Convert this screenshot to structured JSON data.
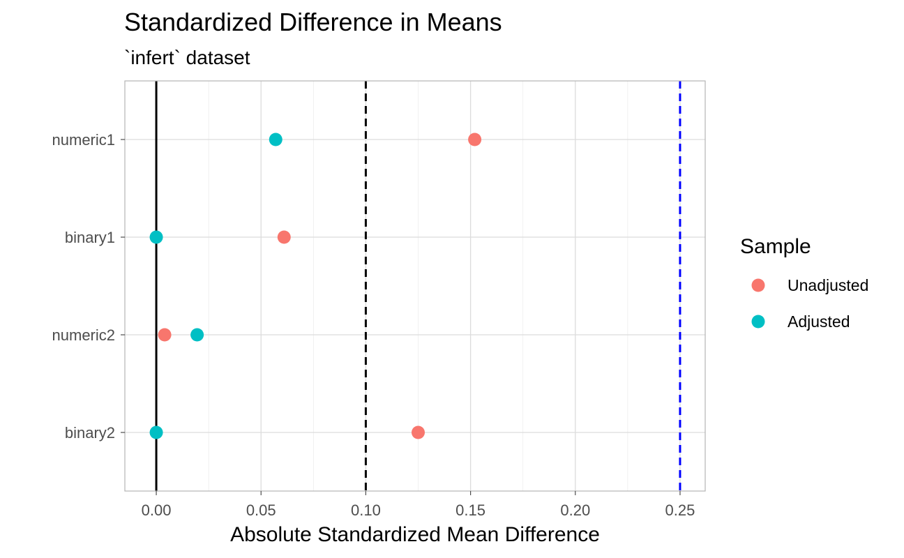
{
  "chart_data": {
    "type": "scatter",
    "title": "Standardized Difference in Means",
    "subtitle": "`infert` dataset",
    "xlabel": "Absolute Standardized Mean Difference",
    "ylabel": "",
    "xlim": [
      -0.015,
      0.262
    ],
    "x_ticks": [
      0,
      0.05,
      0.1,
      0.15,
      0.2,
      0.25
    ],
    "x_tick_labels": [
      "0.00",
      "0.05",
      "0.10",
      "0.15",
      "0.20",
      "0.25"
    ],
    "categories": [
      "numeric1",
      "binary1",
      "numeric2",
      "binary2"
    ],
    "grid": true,
    "legend": {
      "title": "Sample",
      "position": "right"
    },
    "series": [
      {
        "name": "Unadjusted",
        "color": "#F8766D",
        "values": [
          0.152,
          0.061,
          0.004,
          0.125
        ]
      },
      {
        "name": "Adjusted",
        "color": "#00BFC4",
        "values": [
          0.057,
          0.0,
          0.0195,
          0.0
        ]
      }
    ],
    "reference_lines": [
      {
        "x": 0,
        "style": "solid",
        "color": "#000000"
      },
      {
        "x": 0.1,
        "style": "dashed",
        "color": "#000000"
      },
      {
        "x": 0.25,
        "style": "dashed",
        "color": "#0000FF"
      }
    ]
  }
}
